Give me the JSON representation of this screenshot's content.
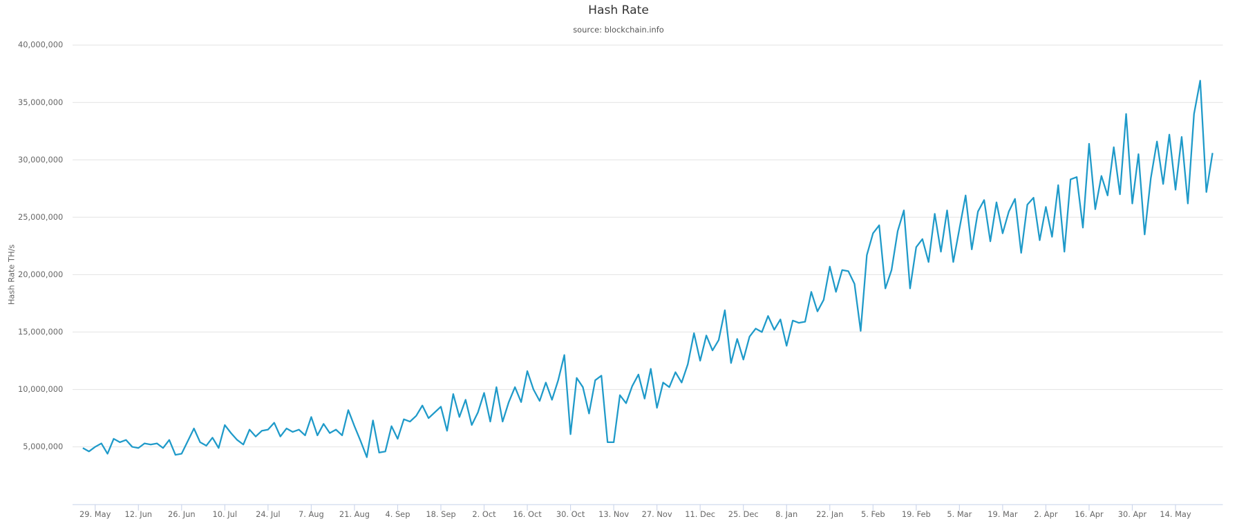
{
  "chart_data": {
    "type": "line",
    "title": "Hash Rate",
    "subtitle": "source: blockchain.info",
    "y_label": "Hash Rate TH/s",
    "color": "#1f9ac9",
    "grid": true,
    "ylim": [
      0,
      40000000
    ],
    "yticks": [
      {
        "value": 5000000,
        "label": "5,000,000"
      },
      {
        "value": 10000000,
        "label": "10,000,000"
      },
      {
        "value": 15000000,
        "label": "15,000,000"
      },
      {
        "value": 20000000,
        "label": "20,000,000"
      },
      {
        "value": 25000000,
        "label": "25,000,000"
      },
      {
        "value": 30000000,
        "label": "30,000,000"
      },
      {
        "value": 35000000,
        "label": "35,000,000"
      },
      {
        "value": 40000000,
        "label": "40,000,000"
      }
    ],
    "categories": [
      null,
      null,
      "29. May",
      null,
      null,
      null,
      null,
      null,
      null,
      "12. Jun",
      null,
      null,
      null,
      null,
      null,
      null,
      "26. Jun",
      null,
      null,
      null,
      null,
      null,
      null,
      "10. Jul",
      null,
      null,
      null,
      null,
      null,
      null,
      "24. Jul",
      null,
      null,
      null,
      null,
      null,
      null,
      "7. Aug",
      null,
      null,
      null,
      null,
      null,
      null,
      "21. Aug",
      null,
      null,
      null,
      null,
      null,
      null,
      "4. Sep",
      null,
      null,
      null,
      null,
      null,
      null,
      "18. Sep",
      null,
      null,
      null,
      null,
      null,
      null,
      "2. Oct",
      null,
      null,
      null,
      null,
      null,
      null,
      "16. Oct",
      null,
      null,
      null,
      null,
      null,
      null,
      "30. Oct",
      null,
      null,
      null,
      null,
      null,
      null,
      "13. Nov",
      null,
      null,
      null,
      null,
      null,
      null,
      "27. Nov",
      null,
      null,
      null,
      null,
      null,
      null,
      "11. Dec",
      null,
      null,
      null,
      null,
      null,
      null,
      "25. Dec",
      null,
      null,
      null,
      null,
      null,
      null,
      "8. Jan",
      null,
      null,
      null,
      null,
      null,
      null,
      "22. Jan",
      null,
      null,
      null,
      null,
      null,
      null,
      "5. Feb",
      null,
      null,
      null,
      null,
      null,
      null,
      "19. Feb",
      null,
      null,
      null,
      null,
      null,
      null,
      "5. Mar",
      null,
      null,
      null,
      null,
      null,
      null,
      "19. Mar",
      null,
      null,
      null,
      null,
      null,
      null,
      "2. Apr",
      null,
      null,
      null,
      null,
      null,
      null,
      "16. Apr",
      null,
      null,
      null,
      null,
      null,
      null,
      "30. Apr",
      null,
      null,
      null,
      null,
      null,
      null,
      "14. May",
      null,
      null,
      null,
      null,
      null,
      null
    ],
    "values": [
      4900000,
      4600000,
      5000000,
      5300000,
      4400000,
      5700000,
      5400000,
      5600000,
      5000000,
      4900000,
      5300000,
      5200000,
      5300000,
      4900000,
      5600000,
      4300000,
      4400000,
      5500000,
      6600000,
      5400000,
      5100000,
      5800000,
      4900000,
      6900000,
      6200000,
      5600000,
      5200000,
      6500000,
      5900000,
      6400000,
      6500000,
      7100000,
      5900000,
      6600000,
      6300000,
      6500000,
      6000000,
      7600000,
      6000000,
      7000000,
      6200000,
      6500000,
      6000000,
      8200000,
      6800000,
      5500000,
      4100000,
      7300000,
      4500000,
      4600000,
      6800000,
      5700000,
      7400000,
      7200000,
      7700000,
      8600000,
      7500000,
      8000000,
      8500000,
      6400000,
      9600000,
      7600000,
      9100000,
      6900000,
      8000000,
      9700000,
      7200000,
      10200000,
      7200000,
      8900000,
      10200000,
      8900000,
      11600000,
      10000000,
      9000000,
      10600000,
      9100000,
      10800000,
      13000000,
      6100000,
      11000000,
      10200000,
      7900000,
      10800000,
      11200000,
      5400000,
      5400000,
      9500000,
      8800000,
      10300000,
      11300000,
      9200000,
      11800000,
      8400000,
      10600000,
      10200000,
      11500000,
      10600000,
      12200000,
      14900000,
      12500000,
      14700000,
      13400000,
      14300000,
      16900000,
      12300000,
      14400000,
      12600000,
      14600000,
      15300000,
      15000000,
      16400000,
      15200000,
      16100000,
      13800000,
      16000000,
      15800000,
      15900000,
      18500000,
      16800000,
      17800000,
      20700000,
      18500000,
      20400000,
      20300000,
      19200000,
      15100000,
      21700000,
      23600000,
      24300000,
      18800000,
      20400000,
      23800000,
      25600000,
      18800000,
      22400000,
      23100000,
      21100000,
      25300000,
      22000000,
      25600000,
      21100000,
      24000000,
      26900000,
      22200000,
      25500000,
      26500000,
      22900000,
      26300000,
      23600000,
      25500000,
      26600000,
      21900000,
      26100000,
      26700000,
      23000000,
      25900000,
      23300000,
      27800000,
      22000000,
      28300000,
      28500000,
      24100000,
      31400000,
      25700000,
      28600000,
      26900000,
      31100000,
      27000000,
      34000000,
      26200000,
      30500000,
      23500000,
      28400000,
      31600000,
      27900000,
      32200000,
      27400000,
      32000000,
      26200000,
      34000000,
      36900000,
      27200000,
      30600000
    ]
  }
}
